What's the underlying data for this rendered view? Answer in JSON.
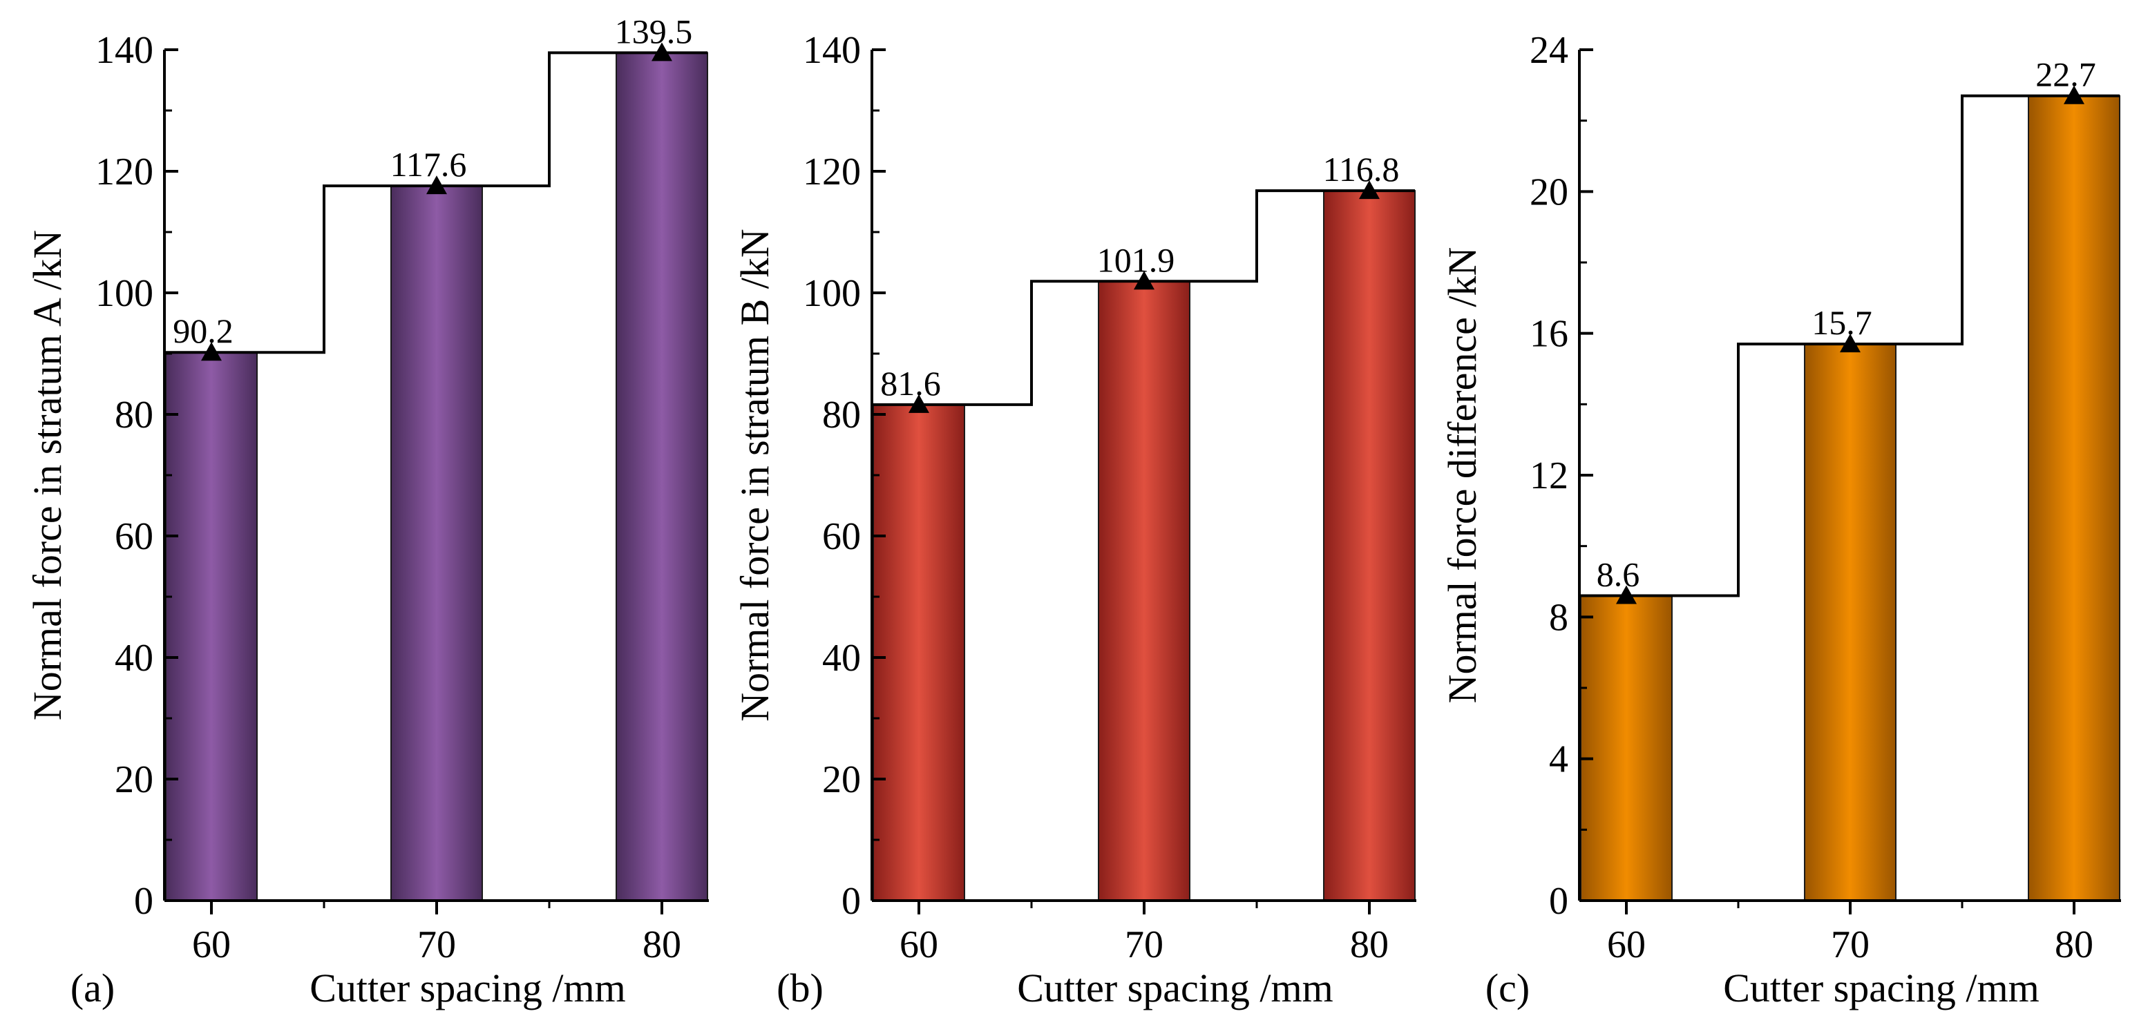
{
  "chart_data": [
    {
      "type": "bar",
      "panel_label": "(a)",
      "categories": [
        "60",
        "70",
        "80"
      ],
      "values": [
        90.2,
        117.6,
        139.5
      ],
      "value_labels": [
        "90.2",
        "117.6",
        "139.5"
      ],
      "xlabel": "Cutter spacing /mm",
      "ylabel": "Normal force in stratum A /kN",
      "ylim": [
        0,
        140
      ],
      "yticks": [
        "0",
        "20",
        "40",
        "60",
        "80",
        "100",
        "120",
        "140"
      ],
      "step_line": true,
      "marker": "triangle",
      "grid": false,
      "bar_color": "#8e5ba6",
      "bar_edge_color": "#4a2d5c"
    },
    {
      "type": "bar",
      "panel_label": "(b)",
      "categories": [
        "60",
        "70",
        "80"
      ],
      "values": [
        81.6,
        101.9,
        116.8
      ],
      "value_labels": [
        "81.6",
        "101.9",
        "116.8"
      ],
      "xlabel": "Cutter spacing /mm",
      "ylabel": "Normal force in stratum B /kN",
      "ylim": [
        0,
        140
      ],
      "yticks": [
        "0",
        "20",
        "40",
        "60",
        "80",
        "100",
        "120",
        "140"
      ],
      "step_line": true,
      "marker": "triangle",
      "grid": false,
      "bar_color": "#e0503f",
      "bar_edge_color": "#8a1f1a"
    },
    {
      "type": "bar",
      "panel_label": "(c)",
      "categories": [
        "60",
        "70",
        "80"
      ],
      "values": [
        8.6,
        15.7,
        22.7
      ],
      "value_labels": [
        "8.6",
        "15.7",
        "22.7"
      ],
      "xlabel": "Cutter spacing /mm",
      "ylabel": "Normal force difference /kN",
      "ylim": [
        0,
        24
      ],
      "yticks": [
        "0",
        "4",
        "8",
        "12",
        "16",
        "20",
        "24"
      ],
      "step_line": true,
      "marker": "triangle",
      "grid": false,
      "bar_color": "#f18c00",
      "bar_edge_color": "#9a5500"
    }
  ]
}
